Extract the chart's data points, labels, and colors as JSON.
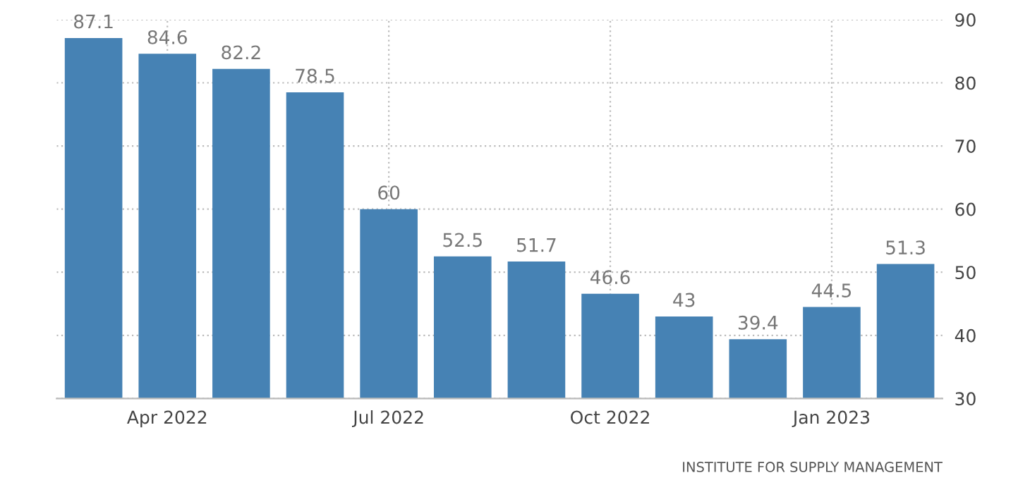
{
  "chart_data": {
    "type": "bar",
    "categories": [
      null,
      "Apr 2022",
      null,
      null,
      "Jul 2022",
      null,
      null,
      "Oct 2022",
      null,
      null,
      "Jan 2023",
      null
    ],
    "values": [
      87.1,
      84.6,
      82.2,
      78.5,
      60,
      52.5,
      51.7,
      46.6,
      43,
      39.4,
      44.5,
      51.3
    ],
    "color": "#4682b4",
    "data_labels": true,
    "ylim": [
      30,
      90
    ],
    "yticks": [
      30,
      40,
      50,
      60,
      70,
      80,
      90
    ],
    "grid": true,
    "annotations": [
      "INSTITUTE FOR SUPPLY MANAGEMENT"
    ]
  }
}
